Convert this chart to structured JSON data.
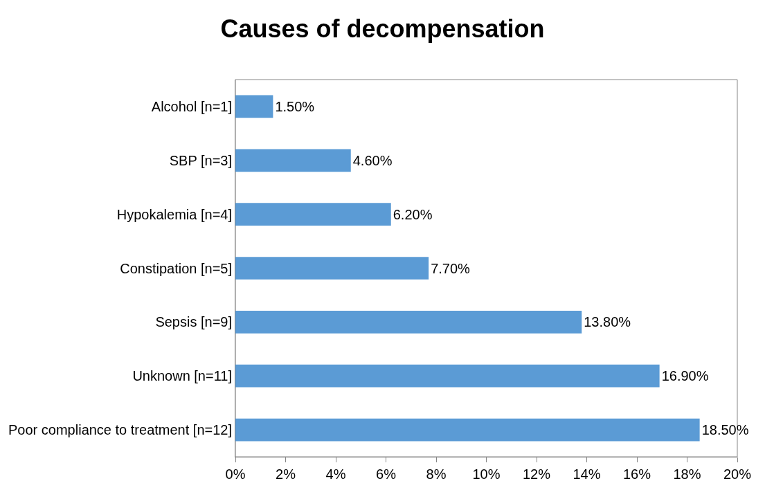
{
  "chart_data": {
    "type": "bar",
    "orientation": "horizontal",
    "title": "Causes of decompensation",
    "categories": [
      "Alcohol [n=1]",
      "SBP [n=3]",
      "Hypokalemia [n=4]",
      "Constipation [n=5]",
      "Sepsis [n=9]",
      "Unknown [n=11]",
      "Poor compliance to treatment [n=12]"
    ],
    "values": [
      1.5,
      4.6,
      6.2,
      7.7,
      13.8,
      16.9,
      18.5
    ],
    "value_labels": [
      "1.50%",
      "4.60%",
      "6.20%",
      "7.70%",
      "13.80%",
      "16.90%",
      "18.50%"
    ],
    "color": "#5b9bd5",
    "xlim": [
      0,
      20
    ],
    "xticks": [
      {
        "value": 0,
        "label": "0%"
      },
      {
        "value": 2,
        "label": "2%"
      },
      {
        "value": 4,
        "label": "4%"
      },
      {
        "value": 6,
        "label": "6%"
      },
      {
        "value": 8,
        "label": "8%"
      },
      {
        "value": 10,
        "label": "10%"
      },
      {
        "value": 12,
        "label": "12%"
      },
      {
        "value": 14,
        "label": "14%"
      },
      {
        "value": 16,
        "label": "16%"
      },
      {
        "value": 18,
        "label": "18%"
      },
      {
        "value": 20,
        "label": "20%"
      }
    ],
    "grid": false,
    "legend": false
  }
}
